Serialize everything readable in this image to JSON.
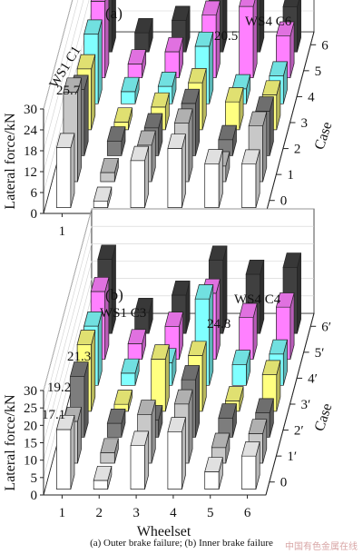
{
  "caption": "(a)  Outer brake failure; (b)  Inner brake failure",
  "watermark": "中国有色金属在线",
  "chart_data": [
    {
      "type": "bar",
      "panel_label": "(a)",
      "ylabel": "Lateral force/kN",
      "xlabel": "Wheelset",
      "zlabel": "Case",
      "ylim": [
        0,
        30
      ],
      "yticks": [
        0,
        6,
        12,
        18,
        24,
        30
      ],
      "categories": [
        "1",
        "2",
        "3",
        "4",
        "5",
        "6"
      ],
      "depth_ticks": [
        "0",
        "1",
        "2",
        "3",
        "4",
        "5",
        "6"
      ],
      "annotations": [
        {
          "text": "WS4 C6",
          "kind": "label"
        },
        {
          "text": "WS1 C1",
          "kind": "label"
        },
        {
          "text": "20.5",
          "kind": "value"
        },
        {
          "text": "25.7",
          "kind": "value"
        }
      ],
      "series": [
        {
          "name": "0",
          "values": [
            17.2,
            1.8,
            13.5,
            17.0,
            12.6,
            12.5
          ]
        },
        {
          "name": "1",
          "values": [
            25.7,
            2.6,
            10.5,
            16.8,
            4.5,
            16.0
          ]
        },
        {
          "name": "2",
          "values": [
            19.0,
            4.2,
            8.0,
            15.0,
            4.6,
            12.8
          ]
        },
        {
          "name": "3",
          "values": [
            17.5,
            2.2,
            6.5,
            13.5,
            8.0,
            10.0
          ]
        },
        {
          "name": "4",
          "values": [
            20.0,
            3.5,
            5.0,
            16.5,
            4.3,
            8.0
          ]
        },
        {
          "name": "5",
          "values": [
            22.0,
            4.0,
            7.5,
            18.0,
            20.5,
            12.0
          ]
        },
        {
          "name": "6",
          "values": [
            24.0,
            5.5,
            9.0,
            20.0,
            20.5,
            13.0
          ]
        }
      ]
    },
    {
      "type": "bar",
      "panel_label": "(b)",
      "ylabel": "Lateral force/kN",
      "xlabel": "Wheelset",
      "zlabel": "Case",
      "ylim": [
        0,
        30
      ],
      "yticks": [
        0,
        5,
        10,
        15,
        20,
        25,
        30
      ],
      "categories": [
        "1",
        "2",
        "3",
        "4",
        "5",
        "6"
      ],
      "depth_ticks": [
        "0",
        "1′",
        "2′",
        "3′",
        "4′",
        "5′",
        "6′"
      ],
      "annotations": [
        {
          "text": "WS1 C3",
          "kind": "label"
        },
        {
          "text": "WS4 C4",
          "kind": "label"
        },
        {
          "text": "24.8",
          "kind": "value"
        },
        {
          "text": "21.3",
          "kind": "value"
        },
        {
          "text": "19.2",
          "kind": "value"
        },
        {
          "text": "17.1",
          "kind": "value"
        }
      ],
      "series": [
        {
          "name": "0",
          "values": [
            17.1,
            2.5,
            12.5,
            16.5,
            5.0,
            9.5
          ]
        },
        {
          "name": "1′",
          "values": [
            12.0,
            3.0,
            14.0,
            17.0,
            4.5,
            8.5
          ]
        },
        {
          "name": "2′",
          "values": [
            17.5,
            4.0,
            5.0,
            16.5,
            5.5,
            7.0
          ]
        },
        {
          "name": "3′",
          "values": [
            19.2,
            2.0,
            15.0,
            16.0,
            3.0,
            10.5
          ]
        },
        {
          "name": "4′",
          "values": [
            17.0,
            3.5,
            6.5,
            24.8,
            6.0,
            9.0
          ]
        },
        {
          "name": "5′",
          "values": [
            19.5,
            4.5,
            9.5,
            19.0,
            12.0,
            15.0
          ]
        },
        {
          "name": "6′",
          "values": [
            21.3,
            6.0,
            11.0,
            21.0,
            17.0,
            19.0
          ]
        }
      ]
    }
  ],
  "colors": {
    "series": [
      "#ffffff",
      "#c8c8c8",
      "#7d7d7d",
      "#ffff80",
      "#80ffff",
      "#ff80ff",
      "#404040"
    ],
    "axis": "#222222",
    "grid": "#d0d0d0"
  }
}
